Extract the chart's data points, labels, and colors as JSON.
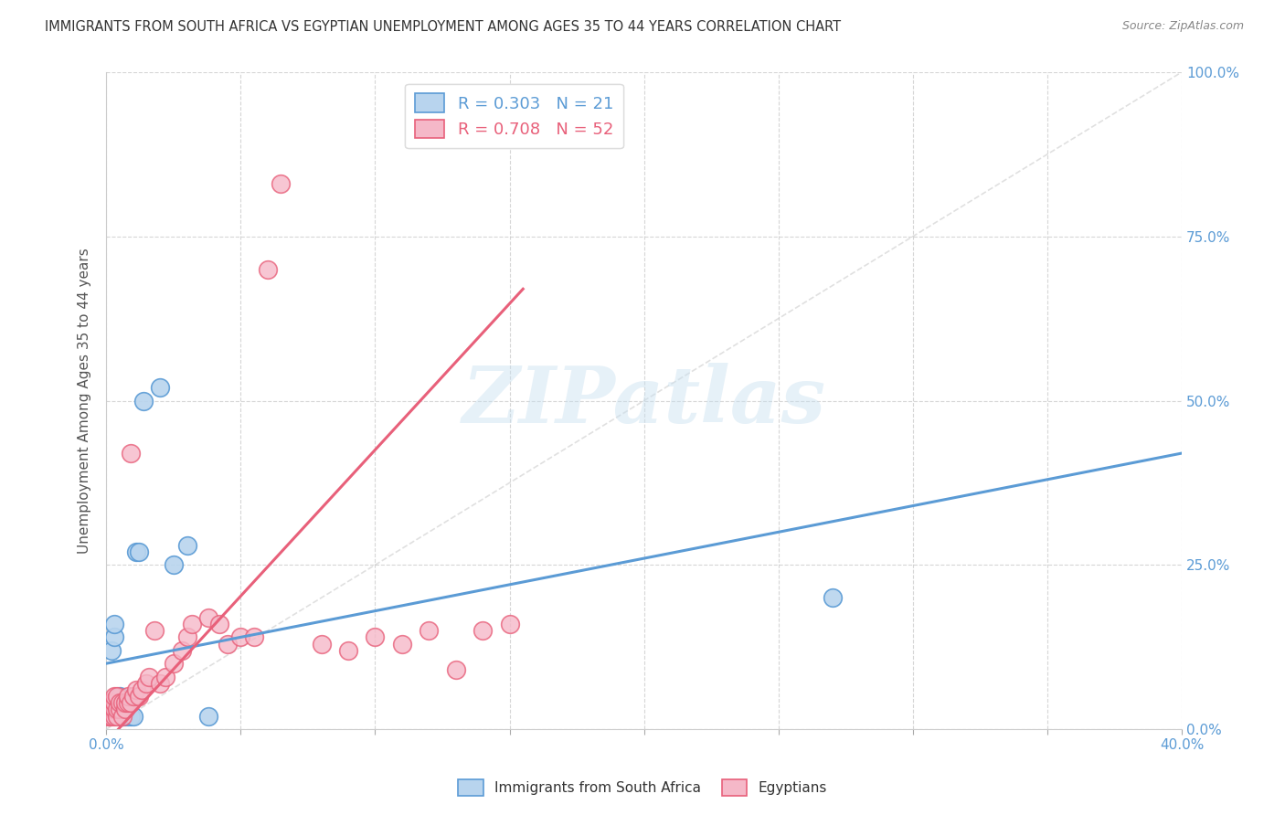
{
  "title": "IMMIGRANTS FROM SOUTH AFRICA VS EGYPTIAN UNEMPLOYMENT AMONG AGES 35 TO 44 YEARS CORRELATION CHART",
  "source": "Source: ZipAtlas.com",
  "ylabel": "Unemployment Among Ages 35 to 44 years",
  "xmin": 0.0,
  "xmax": 0.4,
  "ymin": 0.0,
  "ymax": 1.0,
  "legend_label_blue": "R = 0.303   N = 21",
  "legend_label_pink": "R = 0.708   N = 52",
  "legend_xlabel_blue": "Immigrants from South Africa",
  "legend_xlabel_pink": "Egyptians",
  "blue_fill": "#b8d4ee",
  "pink_fill": "#f5b8c8",
  "blue_edge": "#5b9bd5",
  "pink_edge": "#e8607a",
  "blue_line": "#5b9bd5",
  "pink_line": "#e8607a",
  "ref_line_color": "#cccccc",
  "watermark": "ZIPatlas",
  "scatter_blue_x": [
    0.001,
    0.002,
    0.003,
    0.003,
    0.004,
    0.005,
    0.005,
    0.006,
    0.007,
    0.008,
    0.009,
    0.01,
    0.011,
    0.012,
    0.014,
    0.02,
    0.025,
    0.03,
    0.038,
    0.27,
    0.005
  ],
  "scatter_blue_y": [
    0.03,
    0.12,
    0.14,
    0.16,
    0.03,
    0.04,
    0.02,
    0.02,
    0.02,
    0.02,
    0.02,
    0.02,
    0.27,
    0.27,
    0.5,
    0.52,
    0.25,
    0.28,
    0.02,
    0.2,
    0.05
  ],
  "scatter_pink_x": [
    0.001,
    0.001,
    0.001,
    0.001,
    0.002,
    0.002,
    0.002,
    0.003,
    0.003,
    0.003,
    0.003,
    0.004,
    0.004,
    0.004,
    0.005,
    0.005,
    0.006,
    0.006,
    0.007,
    0.007,
    0.008,
    0.008,
    0.009,
    0.009,
    0.01,
    0.011,
    0.012,
    0.013,
    0.015,
    0.016,
    0.018,
    0.02,
    0.022,
    0.025,
    0.028,
    0.03,
    0.032,
    0.038,
    0.042,
    0.045,
    0.05,
    0.055,
    0.06,
    0.065,
    0.08,
    0.09,
    0.1,
    0.11,
    0.13,
    0.15,
    0.12,
    0.14
  ],
  "scatter_pink_y": [
    0.02,
    0.02,
    0.03,
    0.04,
    0.02,
    0.03,
    0.04,
    0.02,
    0.03,
    0.04,
    0.05,
    0.02,
    0.03,
    0.05,
    0.03,
    0.04,
    0.02,
    0.04,
    0.03,
    0.04,
    0.04,
    0.05,
    0.04,
    0.42,
    0.05,
    0.06,
    0.05,
    0.06,
    0.07,
    0.08,
    0.15,
    0.07,
    0.08,
    0.1,
    0.12,
    0.14,
    0.16,
    0.17,
    0.16,
    0.13,
    0.14,
    0.14,
    0.7,
    0.83,
    0.13,
    0.12,
    0.14,
    0.13,
    0.09,
    0.16,
    0.15,
    0.15
  ],
  "blue_line_x0": 0.0,
  "blue_line_x1": 0.4,
  "blue_line_y0": 0.1,
  "blue_line_y1": 0.42,
  "pink_line_x0": 0.0,
  "pink_line_x1": 0.155,
  "pink_line_y0": -0.02,
  "pink_line_y1": 0.67
}
